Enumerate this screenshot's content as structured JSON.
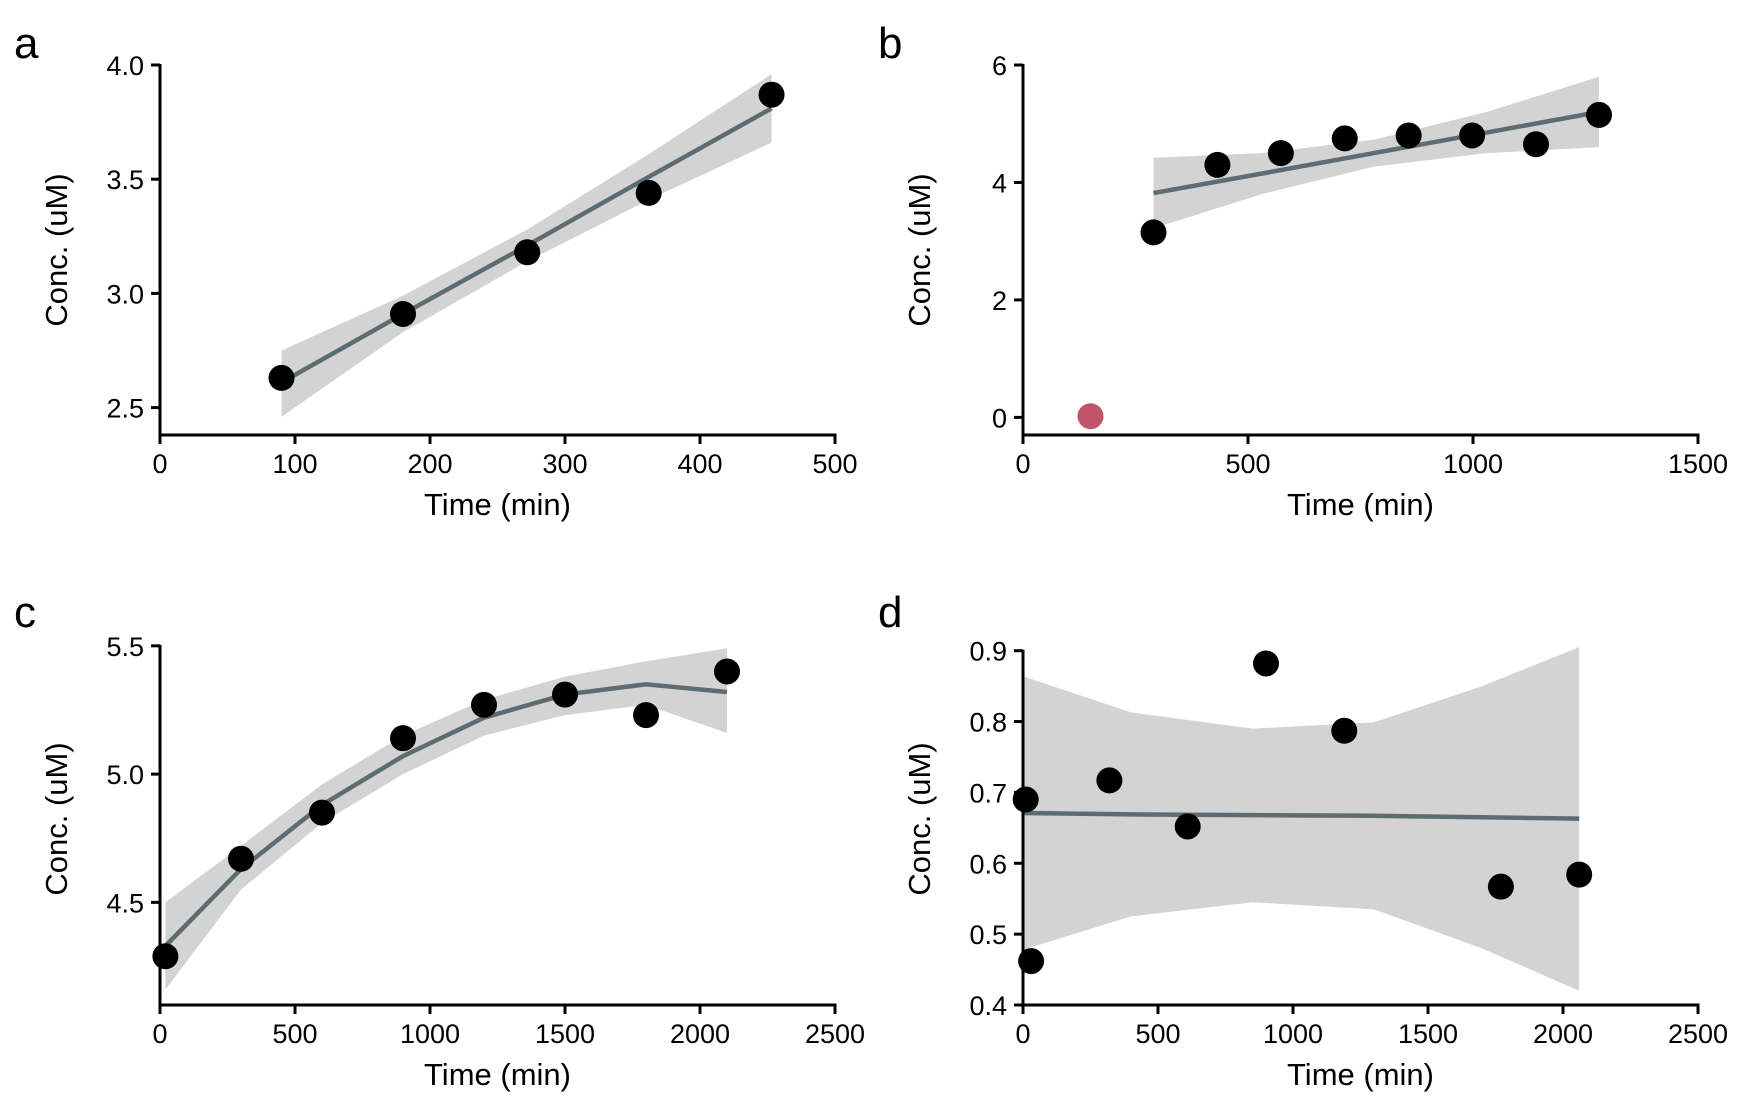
{
  "colors": {
    "point": "#000000",
    "outlier": "#c0546a",
    "fit_line": "#5d6b73",
    "ci_band": "#d3d3d3",
    "axis": "#000000"
  },
  "chart_data": [
    {
      "panel": "a",
      "type": "scatter",
      "xlabel": "Time (min)",
      "ylabel": "Conc. (uM)",
      "xlim": [
        0,
        500
      ],
      "ylim": [
        2.38,
        4.0
      ],
      "xticks": [
        0,
        100,
        200,
        300,
        400,
        500
      ],
      "yticks": [
        2.5,
        3.0,
        3.5,
        4.0
      ],
      "ytick_labels": [
        "2.5",
        "3.0",
        "3.5",
        "4.0"
      ],
      "grid": false,
      "points": [
        {
          "x": 90,
          "y": 2.63
        },
        {
          "x": 180,
          "y": 2.91
        },
        {
          "x": 272,
          "y": 3.18
        },
        {
          "x": 362,
          "y": 3.44
        },
        {
          "x": 453,
          "y": 3.87
        }
      ],
      "fit": [
        {
          "x": 90,
          "y": 2.61,
          "lo": 2.46,
          "hi": 2.75
        },
        {
          "x": 180,
          "y": 2.91,
          "lo": 2.83,
          "hi": 2.99
        },
        {
          "x": 272,
          "y": 3.21,
          "lo": 3.14,
          "hi": 3.28
        },
        {
          "x": 362,
          "y": 3.51,
          "lo": 3.41,
          "hi": 3.61
        },
        {
          "x": 453,
          "y": 3.81,
          "lo": 3.66,
          "hi": 3.96
        }
      ]
    },
    {
      "panel": "b",
      "type": "scatter",
      "xlabel": "Time (min)",
      "ylabel": "Conc. (uM)",
      "xlim": [
        0,
        1500
      ],
      "ylim": [
        -0.3,
        6.0
      ],
      "xticks": [
        0,
        500,
        1000,
        1500
      ],
      "yticks": [
        0,
        2,
        4,
        6
      ],
      "ytick_labels": [
        "0",
        "2",
        "4",
        "6"
      ],
      "grid": false,
      "points": [
        {
          "x": 290,
          "y": 3.15
        },
        {
          "x": 432,
          "y": 4.3
        },
        {
          "x": 573,
          "y": 4.5
        },
        {
          "x": 715,
          "y": 4.75
        },
        {
          "x": 857,
          "y": 4.8
        },
        {
          "x": 998,
          "y": 4.8
        },
        {
          "x": 1140,
          "y": 4.65
        },
        {
          "x": 1280,
          "y": 5.15
        }
      ],
      "outliers": [
        {
          "x": 150,
          "y": 0.02
        }
      ],
      "fit": [
        {
          "x": 290,
          "y": 3.82,
          "lo": 3.22,
          "hi": 4.42
        },
        {
          "x": 530,
          "y": 4.15,
          "lo": 3.8,
          "hi": 4.5
        },
        {
          "x": 780,
          "y": 4.5,
          "lo": 4.27,
          "hi": 4.73
        },
        {
          "x": 1030,
          "y": 4.85,
          "lo": 4.5,
          "hi": 5.2
        },
        {
          "x": 1280,
          "y": 5.2,
          "lo": 4.6,
          "hi": 5.8
        }
      ]
    },
    {
      "panel": "c",
      "type": "scatter",
      "xlabel": "Time (min)",
      "ylabel": "Conc. (uM)",
      "xlim": [
        0,
        2500
      ],
      "ylim": [
        4.1,
        5.55
      ],
      "xticks": [
        0,
        500,
        1000,
        1500,
        2000,
        2500
      ],
      "yticks": [
        4.5,
        5.0,
        5.5
      ],
      "ytick_labels": [
        "4.5",
        "5.0",
        "5.5"
      ],
      "grid": false,
      "points": [
        {
          "x": 20,
          "y": 4.29
        },
        {
          "x": 300,
          "y": 4.67
        },
        {
          "x": 600,
          "y": 4.85
        },
        {
          "x": 900,
          "y": 5.14
        },
        {
          "x": 1200,
          "y": 5.27
        },
        {
          "x": 1500,
          "y": 5.31
        },
        {
          "x": 1800,
          "y": 5.23
        },
        {
          "x": 2100,
          "y": 5.4
        }
      ],
      "fit": [
        {
          "x": 20,
          "y": 4.33,
          "lo": 4.16,
          "hi": 4.5
        },
        {
          "x": 300,
          "y": 4.63,
          "lo": 4.55,
          "hi": 4.72
        },
        {
          "x": 600,
          "y": 4.88,
          "lo": 4.81,
          "hi": 4.96
        },
        {
          "x": 900,
          "y": 5.07,
          "lo": 5.0,
          "hi": 5.15
        },
        {
          "x": 1200,
          "y": 5.22,
          "lo": 5.15,
          "hi": 5.29
        },
        {
          "x": 1500,
          "y": 5.31,
          "lo": 5.23,
          "hi": 5.38
        },
        {
          "x": 1800,
          "y": 5.35,
          "lo": 5.27,
          "hi": 5.44
        },
        {
          "x": 2100,
          "y": 5.32,
          "lo": 5.16,
          "hi": 5.49
        }
      ]
    },
    {
      "panel": "d",
      "type": "scatter",
      "xlabel": "Time (min)",
      "ylabel": "Conc. (uM)",
      "xlim": [
        0,
        2500
      ],
      "ylim": [
        0.4,
        0.925
      ],
      "xticks": [
        0,
        500,
        1000,
        1500,
        2000,
        2500
      ],
      "yticks": [
        0.4,
        0.5,
        0.6,
        0.7,
        0.8,
        0.9
      ],
      "ytick_labels": [
        "0.4",
        "0.5",
        "0.6",
        "0.7",
        "0.8",
        "0.9"
      ],
      "grid": false,
      "points": [
        {
          "x": 10,
          "y": 0.69
        },
        {
          "x": 30,
          "y": 0.462
        },
        {
          "x": 320,
          "y": 0.717
        },
        {
          "x": 610,
          "y": 0.652
        },
        {
          "x": 900,
          "y": 0.882
        },
        {
          "x": 1190,
          "y": 0.787
        },
        {
          "x": 1770,
          "y": 0.567
        },
        {
          "x": 2060,
          "y": 0.584
        }
      ],
      "fit": [
        {
          "x": 0,
          "y": 0.671,
          "lo": 0.478,
          "hi": 0.864
        },
        {
          "x": 400,
          "y": 0.669,
          "lo": 0.525,
          "hi": 0.813
        },
        {
          "x": 850,
          "y": 0.668,
          "lo": 0.545,
          "hi": 0.79
        },
        {
          "x": 1300,
          "y": 0.667,
          "lo": 0.535,
          "hi": 0.799
        },
        {
          "x": 1700,
          "y": 0.665,
          "lo": 0.48,
          "hi": 0.85
        },
        {
          "x": 2060,
          "y": 0.663,
          "lo": 0.42,
          "hi": 0.905
        }
      ]
    }
  ]
}
